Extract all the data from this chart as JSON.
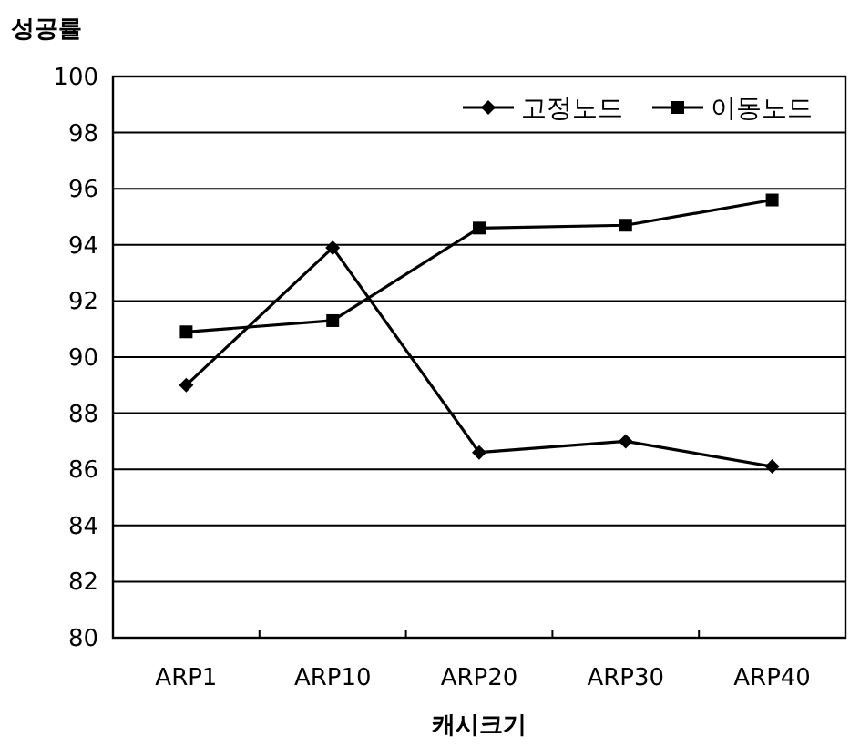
{
  "chart_data": {
    "type": "line",
    "ylabel": "성공률",
    "xlabel": "캐시크기",
    "categories": [
      "ARP1",
      "ARP10",
      "ARP20",
      "ARP30",
      "ARP40"
    ],
    "series": [
      {
        "name": "고정노드",
        "color": "#000000",
        "marker": "diamond",
        "values": [
          89.0,
          93.9,
          86.6,
          87.0,
          86.1
        ]
      },
      {
        "name": "이동노드",
        "color": "#000000",
        "marker": "square",
        "values": [
          90.9,
          91.3,
          94.6,
          94.7,
          95.6
        ]
      }
    ],
    "ylim": [
      80,
      100
    ],
    "yticks": [
      80,
      82,
      84,
      86,
      88,
      90,
      92,
      94,
      96,
      98,
      100
    ],
    "grid": "y",
    "legend": "top right",
    "line_style": "solid"
  }
}
